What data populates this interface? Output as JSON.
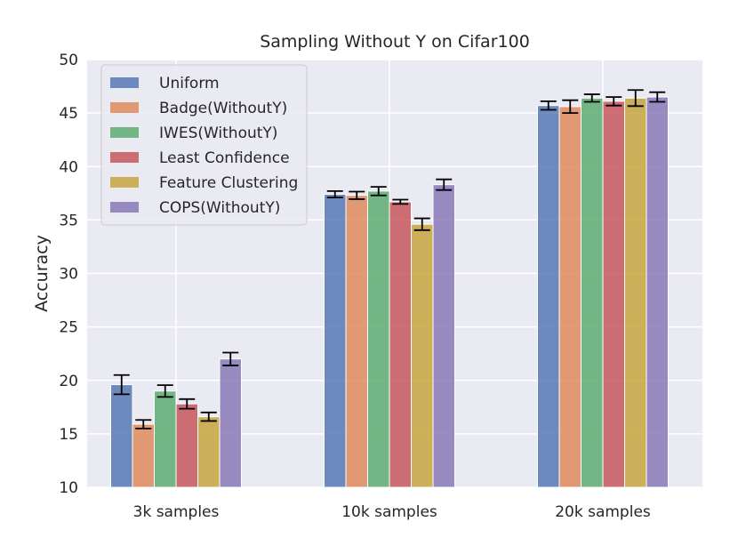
{
  "chart_data": {
    "type": "bar",
    "title": "Sampling Without Y on Cifar100",
    "xlabel": "",
    "ylabel": "Accuracy",
    "ylim": [
      10,
      50
    ],
    "yticks": [
      10,
      15,
      20,
      25,
      30,
      35,
      40,
      45,
      50
    ],
    "grid": true,
    "legend_position": "top-left",
    "categories": [
      "3k samples",
      "10k samples",
      "20k samples"
    ],
    "series": [
      {
        "name": "Uniform",
        "color": "#4c72b0",
        "values": [
          19.6,
          37.4,
          45.7
        ],
        "errors": [
          0.9,
          0.3,
          0.4
        ]
      },
      {
        "name": "Badge(WithoutY)",
        "color": "#dd8452",
        "values": [
          15.9,
          37.3,
          45.6
        ],
        "errors": [
          0.4,
          0.35,
          0.6
        ]
      },
      {
        "name": "IWES(WithoutY)",
        "color": "#55a868",
        "values": [
          19.0,
          37.7,
          46.4
        ],
        "errors": [
          0.55,
          0.4,
          0.35
        ]
      },
      {
        "name": "Least Confidence",
        "color": "#c44e52",
        "values": [
          17.8,
          36.7,
          46.1
        ],
        "errors": [
          0.45,
          0.2,
          0.4
        ]
      },
      {
        "name": "Feature Clustering",
        "color": "#ccb974",
        "fill": "#c4a032",
        "values": [
          16.6,
          34.6,
          46.4
        ],
        "errors": [
          0.4,
          0.55,
          0.75
        ]
      },
      {
        "name": "COPS(WithoutY)",
        "color": "#8172b3",
        "values": [
          22.0,
          38.3,
          46.5
        ],
        "errors": [
          0.6,
          0.5,
          0.45
        ]
      }
    ]
  }
}
